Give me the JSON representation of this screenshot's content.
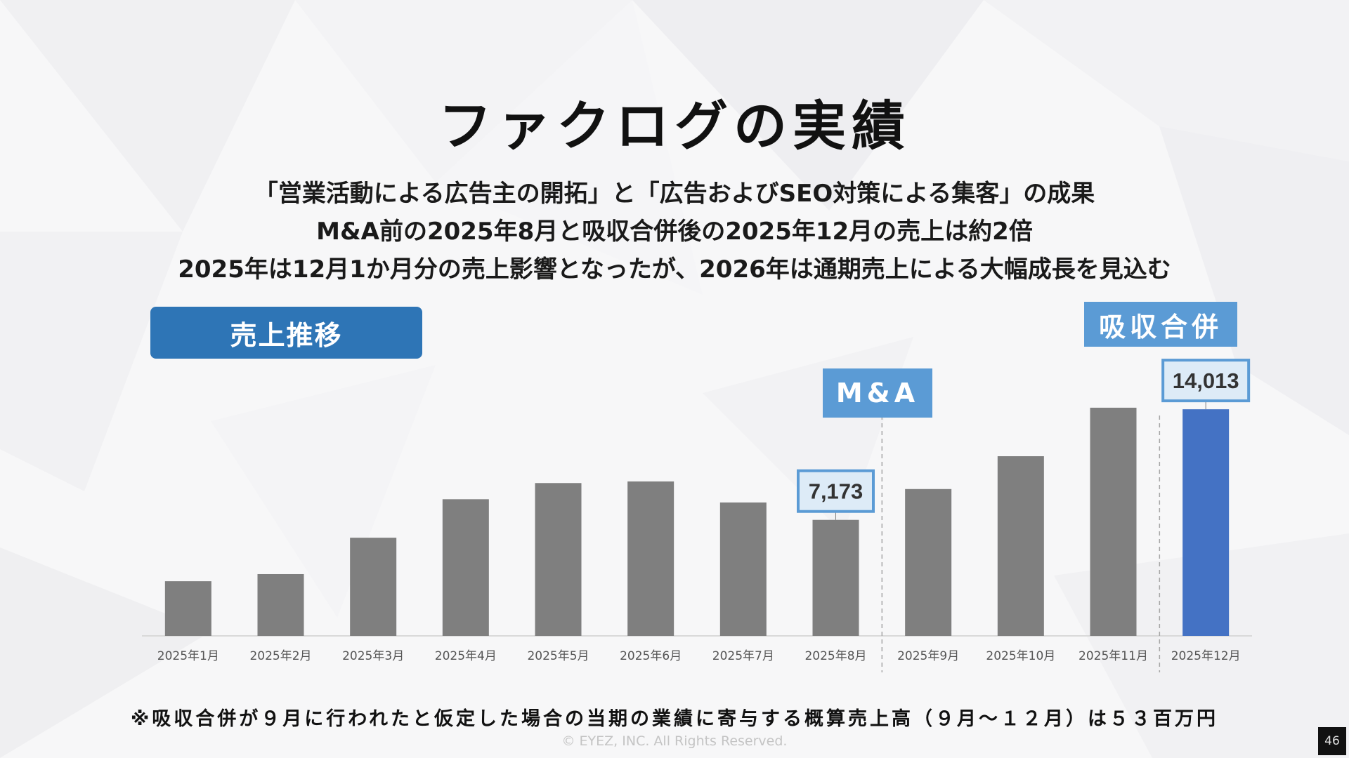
{
  "title": "ファクログの実績",
  "subtitle_lines": [
    "「営業活動による広告主の開拓」と「広告およびSEO対策による集客」の成果",
    "M&A前の2025年8月と吸収合併後の2025年12月の売上は約2倍",
    "2025年は12月1か月分の売上影響となったが、2026年は通期売上による大幅成長を見込む"
  ],
  "section_label": "売上推移",
  "tags": {
    "ma": "M&A",
    "merge": "吸収合併"
  },
  "footnote": "※吸収合併が９月に行われたと仮定した場合の当期の業績に寄与する概算売上高（９月～１２月）は５３百万円",
  "copyright": "© EYEZ, INC. All Rights Reserved.",
  "page_number": "46",
  "colors": {
    "bar": "#7f7f7f",
    "highlight": "#4472c4",
    "label_border": "#5b9bd5",
    "label_fill": "#ddebf7",
    "pill": "#2e75b6"
  },
  "chart_data": {
    "type": "bar",
    "categories": [
      "2025年1月",
      "2025年2月",
      "2025年3月",
      "2025年4月",
      "2025年5月",
      "2025年6月",
      "2025年7月",
      "2025年8月",
      "2025年9月",
      "2025年10月",
      "2025年11月",
      "2025年12月"
    ],
    "values": [
      3380,
      3820,
      6070,
      8450,
      9450,
      9550,
      8250,
      7173,
      9080,
      11110,
      14110,
      14013
    ],
    "highlight_index": 11,
    "data_labels": [
      {
        "index": 7,
        "text": "7,173"
      },
      {
        "index": 11,
        "text": "14,013"
      }
    ],
    "divider_after": [
      7,
      10
    ],
    "ylim": [
      0,
      14800
    ],
    "title": "",
    "xlabel": "",
    "ylabel": ""
  }
}
